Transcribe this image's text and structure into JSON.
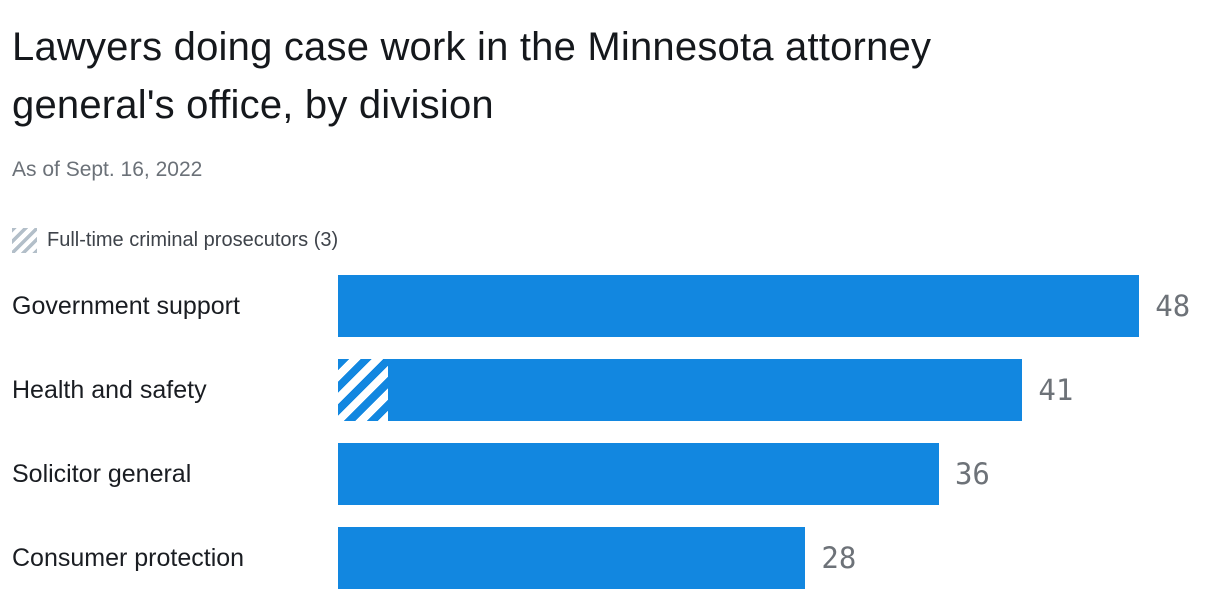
{
  "title": "Lawyers doing case work in the Minnesota attorney general's office, by division",
  "subtitle": "As of Sept. 16, 2022",
  "legend": {
    "label": "Full-time criminal prosecutors (3)"
  },
  "chart_data": {
    "type": "bar",
    "orientation": "horizontal",
    "title": "Lawyers doing case work in the Minnesota attorney general's office, by division",
    "subtitle": "As of Sept. 16, 2022",
    "categories": [
      "Government support",
      "Health and safety",
      "Solicitor general",
      "Consumer protection"
    ],
    "values": [
      48,
      41,
      36,
      28
    ],
    "xlim": [
      0,
      48
    ],
    "grid": false,
    "legend_position": "top-left",
    "hatched_segment": {
      "category": "Health and safety",
      "value": 3,
      "label": "Full-time criminal prosecutors (3)"
    },
    "bar_color": "#1287e0",
    "value_label_color": "#6d7278",
    "category_label_color": "#1a1d22"
  }
}
